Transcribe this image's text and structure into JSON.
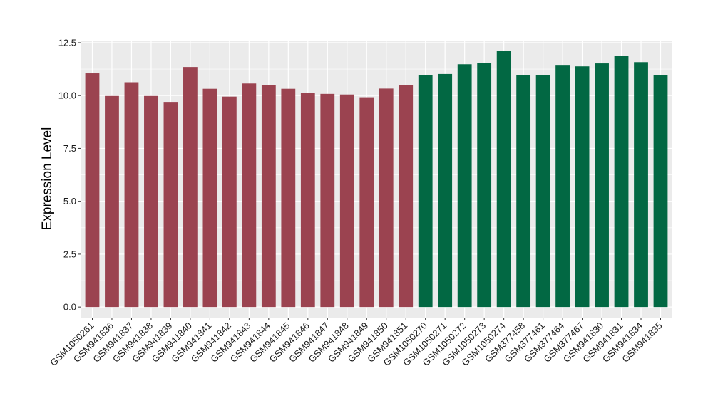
{
  "chart_data": {
    "type": "bar",
    "title": "",
    "xlabel": "",
    "ylabel": "Expression Level",
    "ylim": [
      -0.5,
      12.6
    ],
    "yticks": [
      0.0,
      2.5,
      5.0,
      7.5,
      10.0,
      12.5
    ],
    "ytick_labels": [
      "0.0",
      "2.5",
      "5.0",
      "7.5",
      "10.0",
      "12.5"
    ],
    "grid": true,
    "legend": "none",
    "categories": [
      "GSM1050261",
      "GSM941836",
      "GSM941837",
      "GSM941838",
      "GSM941839",
      "GSM941840",
      "GSM941841",
      "GSM941842",
      "GSM941843",
      "GSM941844",
      "GSM941845",
      "GSM941846",
      "GSM941847",
      "GSM941848",
      "GSM941849",
      "GSM941850",
      "GSM941851",
      "GSM1050270",
      "GSM1050271",
      "GSM1050272",
      "GSM1050273",
      "GSM1050274",
      "GSM377458",
      "GSM377461",
      "GSM377464",
      "GSM377467",
      "GSM941830",
      "GSM941831",
      "GSM941834",
      "GSM941835"
    ],
    "values": [
      11.05,
      9.98,
      10.63,
      9.98,
      9.7,
      11.35,
      10.32,
      9.95,
      10.57,
      10.5,
      10.32,
      10.12,
      10.08,
      10.05,
      9.92,
      10.33,
      10.5,
      10.97,
      11.02,
      11.48,
      11.55,
      12.12,
      10.97,
      10.97,
      11.45,
      11.38,
      11.52,
      11.88,
      11.58,
      10.95
    ],
    "groups": [
      0,
      0,
      0,
      0,
      0,
      0,
      0,
      0,
      0,
      0,
      0,
      0,
      0,
      0,
      0,
      0,
      0,
      1,
      1,
      1,
      1,
      1,
      1,
      1,
      1,
      1,
      1,
      1,
      1,
      1
    ],
    "colors": [
      "#9b4350",
      "#026843"
    ],
    "panel_background": "#ebebeb",
    "grid_color": "#ffffff"
  }
}
